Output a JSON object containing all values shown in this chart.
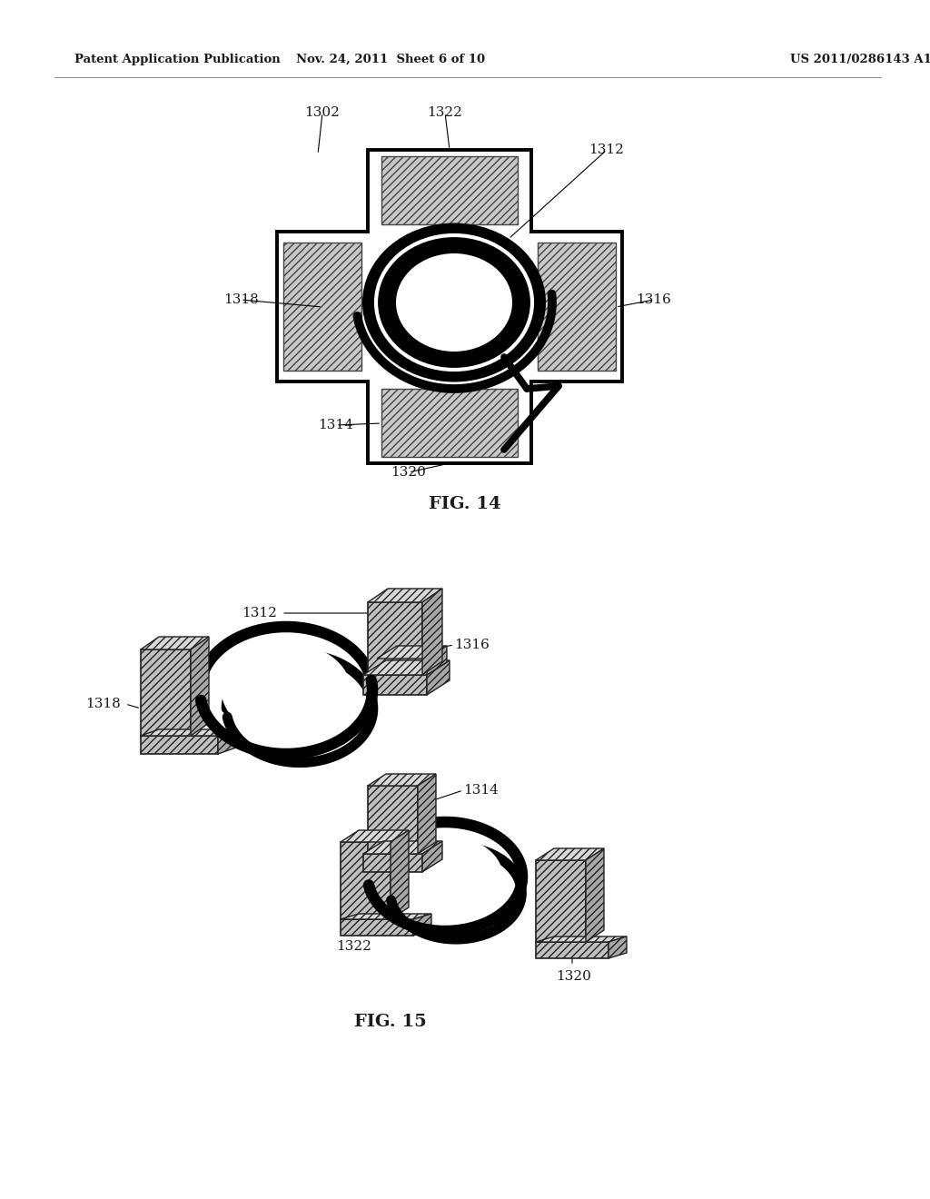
{
  "background_color": "#ffffff",
  "header_left": "Patent Application Publication",
  "header_center": "Nov. 24, 2011  Sheet 6 of 10",
  "header_right": "US 2011/0286143 A1",
  "text_color": "#1a1a1a",
  "fig14_title": "FIG. 14",
  "fig15_title": "FIG. 15",
  "hatch_fc": "#c8c8c8",
  "hatch_ec": "#444444",
  "hatch_pat": "////",
  "core_fc": "#c0c0c0",
  "core_ec": "#222222"
}
